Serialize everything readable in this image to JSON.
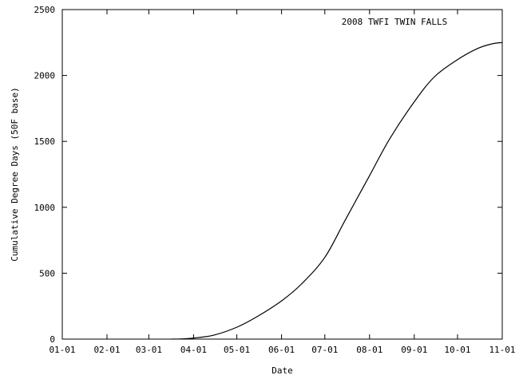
{
  "chart_data": {
    "type": "line",
    "legend": {
      "text": "2008 TWFI TWIN FALLS",
      "placement": "top-right"
    },
    "xlabel": "Date",
    "ylabel": "Cumulative Degree Days (50F base)",
    "xlim": [
      "2008-01-01",
      "2008-11-01"
    ],
    "ylim": [
      0,
      2500
    ],
    "grid": false,
    "x_ticks": [
      {
        "date": "2008-01-01",
        "label": "01-01"
      },
      {
        "date": "2008-02-01",
        "label": "02-01"
      },
      {
        "date": "2008-03-01",
        "label": "03-01"
      },
      {
        "date": "2008-04-01",
        "label": "04-01"
      },
      {
        "date": "2008-05-01",
        "label": "05-01"
      },
      {
        "date": "2008-06-01",
        "label": "06-01"
      },
      {
        "date": "2008-07-01",
        "label": "07-01"
      },
      {
        "date": "2008-08-01",
        "label": "08-01"
      },
      {
        "date": "2008-09-01",
        "label": "09-01"
      },
      {
        "date": "2008-10-01",
        "label": "10-01"
      },
      {
        "date": "2008-11-01",
        "label": "11-01"
      }
    ],
    "y_ticks": [
      {
        "value": 0,
        "label": "0"
      },
      {
        "value": 500,
        "label": "500"
      },
      {
        "value": 1000,
        "label": "1000"
      },
      {
        "value": 1500,
        "label": "1500"
      },
      {
        "value": 2000,
        "label": "2000"
      },
      {
        "value": 2500,
        "label": "2500"
      }
    ],
    "series": [
      {
        "color": "#000000",
        "points": [
          {
            "x": "2008-03-17",
            "y": 0
          },
          {
            "x": "2008-03-24",
            "y": 2
          },
          {
            "x": "2008-04-01",
            "y": 8
          },
          {
            "x": "2008-04-15",
            "y": 30
          },
          {
            "x": "2008-05-01",
            "y": 90
          },
          {
            "x": "2008-05-15",
            "y": 170
          },
          {
            "x": "2008-06-01",
            "y": 290
          },
          {
            "x": "2008-06-15",
            "y": 420
          },
          {
            "x": "2008-07-01",
            "y": 620
          },
          {
            "x": "2008-07-15",
            "y": 900
          },
          {
            "x": "2008-08-01",
            "y": 1240
          },
          {
            "x": "2008-08-15",
            "y": 1520
          },
          {
            "x": "2008-09-01",
            "y": 1800
          },
          {
            "x": "2008-09-15",
            "y": 1990
          },
          {
            "x": "2008-10-01",
            "y": 2120
          },
          {
            "x": "2008-10-15",
            "y": 2205
          },
          {
            "x": "2008-10-25",
            "y": 2240
          },
          {
            "x": "2008-11-01",
            "y": 2250
          }
        ]
      }
    ]
  }
}
